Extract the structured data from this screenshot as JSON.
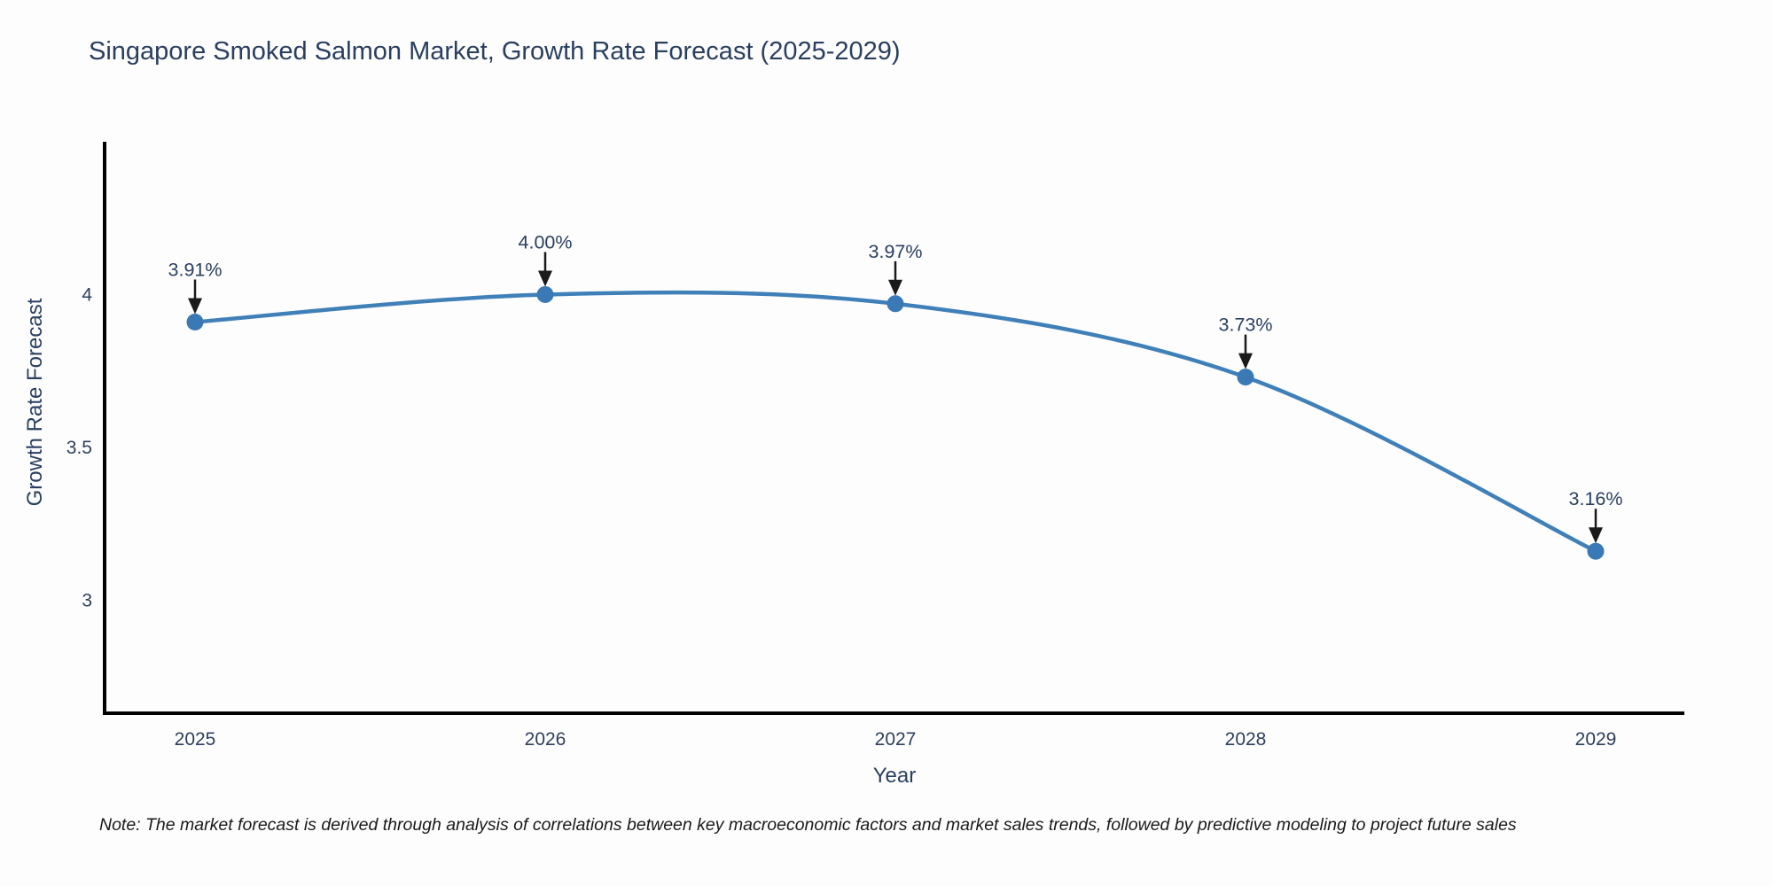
{
  "title": "Singapore Smoked Salmon Market, Growth Rate Forecast (2025-2029)",
  "note": "Note: The market forecast is derived through analysis of correlations between key macroeconomic factors and market sales trends, followed by predictive modeling to project future sales",
  "chart_data": {
    "type": "line",
    "title": "Singapore Smoked Salmon Market, Growth Rate Forecast (2025-2029)",
    "categories": [
      "2025",
      "2026",
      "2027",
      "2028",
      "2029"
    ],
    "values": [
      3.91,
      4.0,
      3.97,
      3.73,
      3.16
    ],
    "point_labels": [
      "3.91%",
      "4.00%",
      "3.97%",
      "3.73%",
      "3.16%"
    ],
    "xlabel": "Year",
    "ylabel": "Growth Rate Forecast",
    "yticks": [
      3,
      3.5,
      4
    ],
    "ytick_labels": [
      "3",
      "3.5",
      "4"
    ],
    "ylim": [
      2.63,
      4.5
    ],
    "line_shape": "spline",
    "grid": false,
    "legend": "none",
    "colors": {
      "line": "#4080b8",
      "marker": "#3a79b5",
      "axis": "#000000",
      "text": "#2a3f5f",
      "annotation": "#1a1a1a"
    }
  }
}
